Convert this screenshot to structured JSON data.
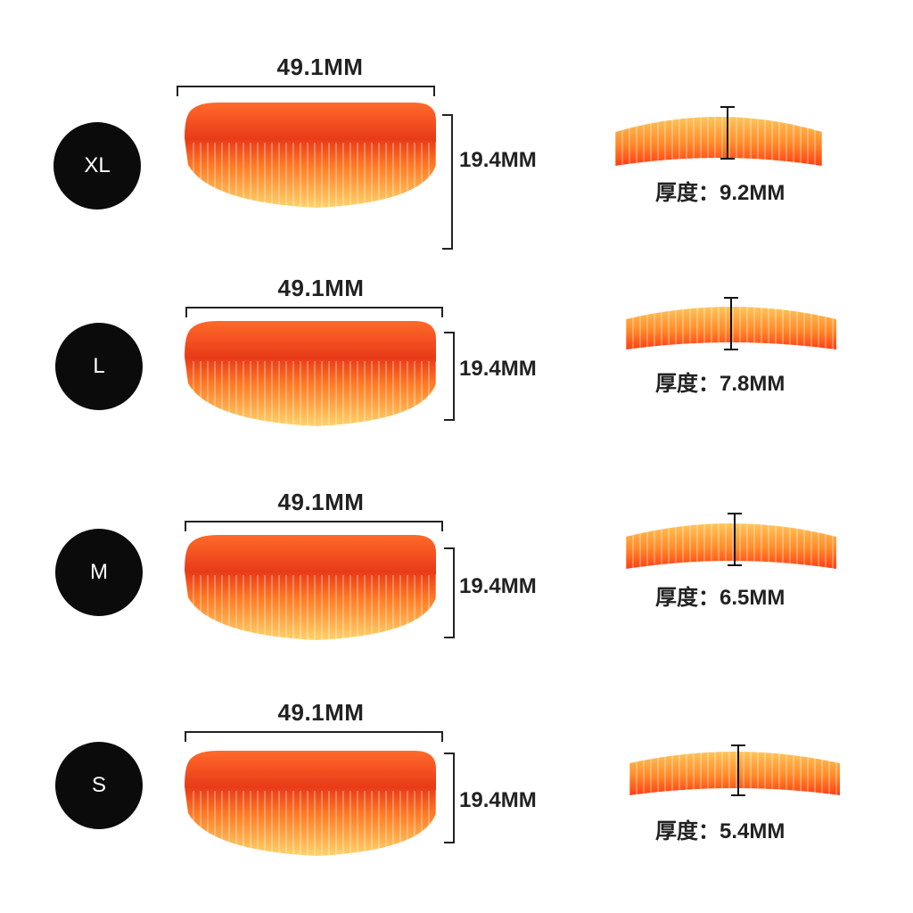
{
  "sizes": [
    {
      "label": "XL",
      "width": "49.1MM",
      "height": "19.4MM",
      "thickness_prefix": "厚度：",
      "thickness": "9.2MM"
    },
    {
      "label": "L",
      "width": "49.1MM",
      "height": "19.4MM",
      "thickness_prefix": "厚度：",
      "thickness": "7.8MM"
    },
    {
      "label": "M",
      "width": "49.1MM",
      "height": "19.4MM",
      "thickness_prefix": "厚度：",
      "thickness": "6.5MM"
    },
    {
      "label": "S",
      "width": "49.1MM",
      "height": "19.4MM",
      "thickness_prefix": "厚度：",
      "thickness": "5.4MM"
    }
  ],
  "colors": {
    "pad_top": "#ff5a1f",
    "pad_mid": "#e8341a",
    "pad_bottom": "#ffc85a",
    "badge": "#0b0b0b"
  }
}
